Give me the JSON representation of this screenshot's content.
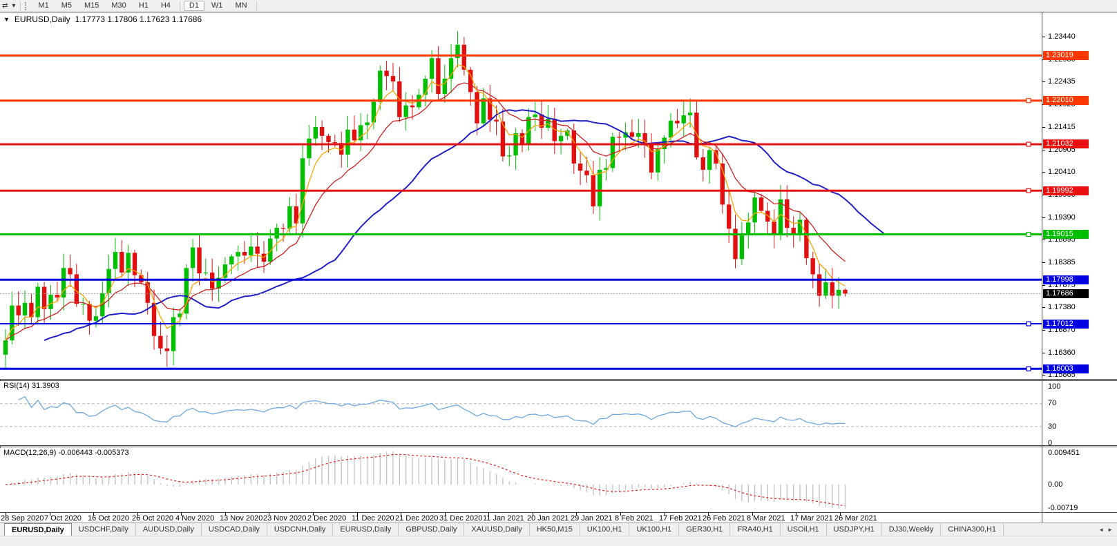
{
  "toolbar": {
    "window_icon": "⇄",
    "window_caret": "▾",
    "timeframes": [
      "M1",
      "M5",
      "M15",
      "M30",
      "H1",
      "H4",
      "D1",
      "W1",
      "MN"
    ],
    "active_timeframe": "D1"
  },
  "chart_header": {
    "collapse_icon": "▼",
    "symbol": "EURUSD,Daily",
    "ohlc": "1.17773 1.17806 1.17623 1.17686"
  },
  "chart_data": {
    "type": "candlestick",
    "symbol": "EURUSD",
    "timeframe": "Daily",
    "ohlc_display": {
      "open": 1.17773,
      "high": 1.17806,
      "low": 1.17623,
      "close": 1.17686
    },
    "closes": [
      1.1664,
      1.1742,
      1.172,
      1.1748,
      1.1716,
      1.1784,
      1.1734,
      1.1766,
      1.176,
      1.1826,
      1.1812,
      1.1746,
      1.1746,
      1.1708,
      1.1718,
      1.177,
      1.1824,
      1.1862,
      1.1816,
      1.186,
      1.181,
      1.1794,
      1.1748,
      1.1674,
      1.1646,
      1.164,
      1.1716,
      1.1724,
      1.1826,
      1.1872,
      1.1814,
      1.1816,
      1.178,
      1.1804,
      1.1834,
      1.1852,
      1.1862,
      1.1854,
      1.1874,
      1.1858,
      1.184,
      1.1892,
      1.1916,
      1.1914,
      1.1964,
      1.1926,
      1.2072,
      1.2116,
      1.2142,
      1.2122,
      1.2108,
      1.2106,
      1.208,
      1.2136,
      1.2112,
      1.2146,
      1.2152,
      1.2198,
      1.2268,
      1.2256,
      1.2244,
      1.2164,
      1.219,
      1.2186,
      1.2214,
      1.225,
      1.2296,
      1.2216,
      1.225,
      1.2296,
      1.2326,
      1.227,
      1.222,
      1.215,
      1.2206,
      1.2158,
      1.2154,
      1.2076,
      1.2078,
      1.2128,
      1.2104,
      1.2164,
      1.217,
      1.214,
      1.216,
      1.211,
      1.2122,
      1.2134,
      1.206,
      1.2044,
      1.2034,
      1.1964,
      1.2046,
      1.205,
      1.212,
      1.2118,
      1.213,
      1.212,
      1.2128,
      1.2104,
      1.204,
      1.2092,
      1.2118,
      1.2156,
      1.215,
      1.2168,
      1.2174,
      1.2074,
      1.2046,
      1.209,
      1.206,
      1.1968,
      1.1914,
      1.1846,
      1.19,
      1.1928,
      1.1984,
      1.1954,
      1.193,
      1.19,
      1.198,
      1.1916,
      1.1904,
      1.1934,
      1.1848,
      1.1812,
      1.1764,
      1.1794,
      1.1764,
      1.1777,
      1.17686
    ],
    "y_axis_ticks": [
      "1.23440",
      "1.22930",
      "1.22435",
      "1.21925",
      "1.21415",
      "1.20905",
      "1.20410",
      "1.19900",
      "1.19390",
      "1.18895",
      "1.18385",
      "1.17875",
      "1.17380",
      "1.16870",
      "1.16360",
      "1.15865"
    ],
    "x_axis_dates": [
      "28 Sep 2020",
      "7 Oct 2020",
      "16 Oct 2020",
      "26 Oct 2020",
      "4 Nov 2020",
      "13 Nov 2020",
      "23 Nov 2020",
      "2 Dec 2020",
      "11 Dec 2020",
      "21 Dec 2020",
      "31 Dec 2020",
      "11 Jan 2021",
      "20 Jan 2021",
      "29 Jan 2021",
      "8 Feb 2021",
      "17 Feb 2021",
      "26 Feb 2021",
      "8 Mar 2021",
      "17 Mar 2021",
      "26 Mar 2021"
    ],
    "horizontal_lines": [
      {
        "price": 1.23019,
        "label": "1.23019",
        "color": "#FF3800",
        "thickness": 3,
        "handle": false
      },
      {
        "price": 1.2201,
        "label": "1.22010",
        "color": "#FF3800",
        "thickness": 3,
        "handle": true
      },
      {
        "price": 1.21032,
        "label": "1.21032",
        "color": "#E81010",
        "thickness": 3,
        "handle": true
      },
      {
        "price": 1.19992,
        "label": "1.19992",
        "color": "#E81010",
        "thickness": 3,
        "handle": true
      },
      {
        "price": 1.19015,
        "label": "1.19015",
        "color": "#00BE00",
        "thickness": 3,
        "handle": true
      },
      {
        "price": 1.17998,
        "label": "1.17998",
        "color": "#0000E0",
        "thickness": 3,
        "handle": false
      },
      {
        "price": 1.17012,
        "label": "1.17012",
        "color": "#0000E0",
        "thickness": 2,
        "handle": true
      },
      {
        "price": 1.16003,
        "label": "1.16003",
        "color": "#0000E0",
        "thickness": 3,
        "handle": true
      }
    ],
    "current_price": {
      "value": 1.17686,
      "label": "1.17686"
    },
    "indicators": {
      "rsi": {
        "label": "RSI(14) 31.3903",
        "value": 31.3903,
        "axis_ticks": [
          "100",
          "70",
          "30",
          "0"
        ],
        "levels": [
          70,
          30
        ]
      },
      "macd": {
        "label": "MACD(12,26,9) -0.006443 -0.005373",
        "value": -0.006443,
        "signal": -0.005373,
        "axis_ticks": [
          "0.009451",
          "0.00",
          "-0.00719"
        ]
      }
    }
  },
  "colors": {
    "candle_up": "#00BE00",
    "candle_down": "#E01010",
    "ma_fast": "#FFA500",
    "ma_medium": "#CC2020",
    "ma_slow": "#2020C8",
    "rsi_line": "#6FA8DC",
    "rsi_level": "#b4b4b4",
    "macd_histogram": "#C4C4C4",
    "macd_signal": "#E02020",
    "current_price_line": "#9a9a9a",
    "current_price_bg": "#000000"
  },
  "tab_bar": {
    "tabs": [
      "EURUSD,Daily",
      "USDCHF,Daily",
      "AUDUSD,Daily",
      "USDCAD,Daily",
      "USDCNH,Daily",
      "EURUSD,Daily",
      "GBPUSD,Daily",
      "XAUUSD,Daily",
      "HK50,M15",
      "UK100,H1",
      "UK100,H1",
      "GER30,H1",
      "FRA40,H1",
      "USOil,H1",
      "USDJPY,H1",
      "DJ30,Weekly",
      "CHINA300,H1"
    ],
    "active_index": 0,
    "scroll_left": "◄",
    "scroll_right": "►"
  }
}
